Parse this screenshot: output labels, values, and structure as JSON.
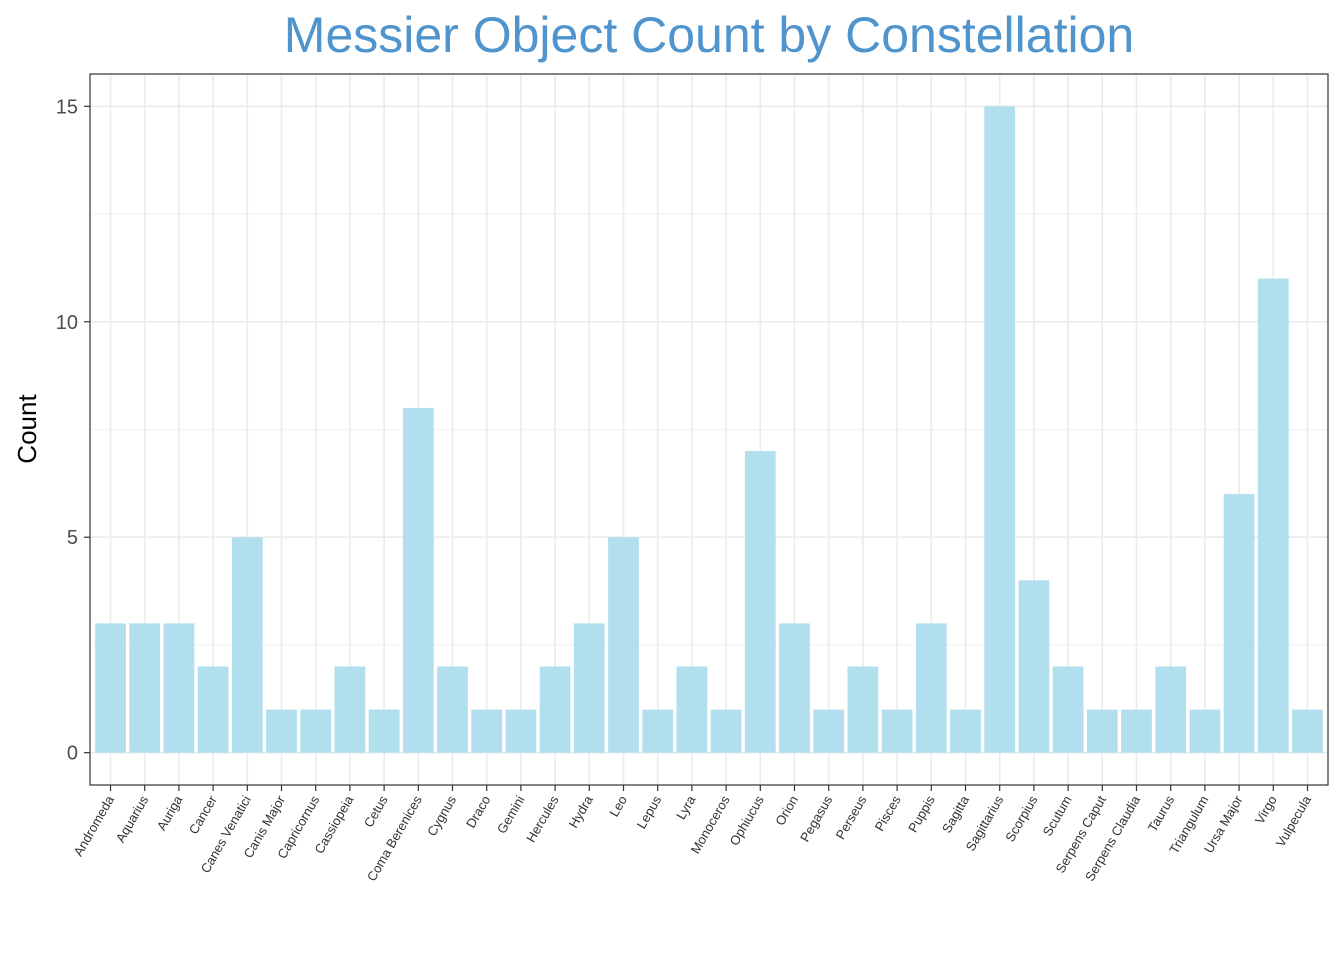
{
  "chart_data": {
    "type": "bar",
    "title": "Messier Object Count by Constellation",
    "xlabel": "",
    "ylabel": "Count",
    "ylim": [
      -0.75,
      15.75
    ],
    "yticks": [
      0,
      5,
      10,
      15
    ],
    "grid": true,
    "bar_color": "#b2dfee",
    "title_color": "#4f94cd",
    "categories": [
      "Andromeda",
      "Aquarius",
      "Auriga",
      "Cancer",
      "Canes Venatici",
      "Canis Major",
      "Capricornus",
      "Cassiopeia",
      "Cetus",
      "Coma Berenices",
      "Cygnus",
      "Draco",
      "Gemini",
      "Hercules",
      "Hydra",
      "Leo",
      "Lepus",
      "Lyra",
      "Monoceros",
      "Ophiucus",
      "Orion",
      "Pegasus",
      "Perseus",
      "Pisces",
      "Puppis",
      "Sagitta",
      "Sagittarius",
      "Scorpius",
      "Scutum",
      "Serpens Caput",
      "Serpens Claudia",
      "Taurus",
      "Triangulum",
      "Ursa Major",
      "Virgo",
      "Vulpecula"
    ],
    "values": [
      3,
      3,
      3,
      2,
      5,
      1,
      1,
      2,
      1,
      8,
      2,
      1,
      1,
      2,
      3,
      5,
      1,
      2,
      1,
      7,
      3,
      1,
      2,
      1,
      3,
      1,
      15,
      4,
      2,
      1,
      1,
      2,
      1,
      6,
      11,
      1
    ]
  }
}
